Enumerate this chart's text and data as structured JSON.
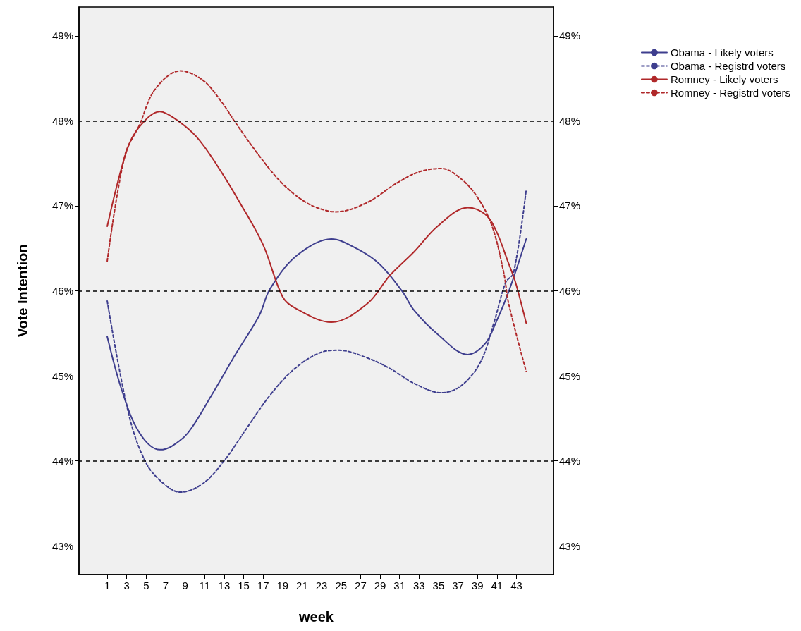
{
  "chart_data": {
    "type": "line",
    "xlabel": "week",
    "ylabel": "Vote Intention",
    "xlim": [
      -1.9,
      46.8
    ],
    "xticks": [
      1,
      3,
      5,
      7,
      9,
      11,
      13,
      15,
      17,
      19,
      21,
      23,
      25,
      27,
      29,
      31,
      33,
      35,
      37,
      39,
      41,
      43
    ],
    "ylim": [
      42.66,
      49.34
    ],
    "yticks": [
      {
        "value": 43,
        "label": "43%"
      },
      {
        "value": 44,
        "label": "44%"
      },
      {
        "value": 45,
        "label": "45%"
      },
      {
        "value": 46,
        "label": "46%"
      },
      {
        "value": 47,
        "label": "47%"
      },
      {
        "value": 48,
        "label": "48%"
      },
      {
        "value": 49,
        "label": "49%"
      }
    ],
    "y2lim": [
      42.66,
      49.34
    ],
    "y2ticks": [
      {
        "value": 43,
        "label": "43%"
      },
      {
        "value": 44,
        "label": "44%"
      },
      {
        "value": 45,
        "label": "45%"
      },
      {
        "value": 46,
        "label": "46%"
      },
      {
        "value": 47,
        "label": "47%"
      },
      {
        "value": 48,
        "label": "48%"
      },
      {
        "value": 49,
        "label": "49%"
      }
    ],
    "grid": false,
    "legend": "right",
    "ref_lines": [
      {
        "axis": "y",
        "value": 44,
        "color": "#000000",
        "line_style": "dashed"
      },
      {
        "axis": "y",
        "value": 46,
        "color": "#000000",
        "line_style": "dashed"
      },
      {
        "axis": "y",
        "value": 48,
        "color": "#000000",
        "line_style": "dashed"
      }
    ],
    "series": [
      {
        "name": "Obama - Likely voters",
        "color": "#3e3e8e",
        "line_style": "solid",
        "x": [
          1,
          2.5,
          4.3,
          6.4,
          7.6,
          9.3,
          11.7,
          14.1,
          16.6,
          17.7,
          20.4,
          24,
          26.4,
          28.9,
          31.3,
          32.5,
          34.9,
          38,
          39.8,
          40.9,
          42.2,
          44
        ],
        "values": [
          45.46,
          44.83,
          44.33,
          44.13,
          44.17,
          44.33,
          44.77,
          45.24,
          45.71,
          46.02,
          46.41,
          46.61,
          46.51,
          46.32,
          45.99,
          45.77,
          45.49,
          45.25,
          45.38,
          45.63,
          45.99,
          46.61
        ]
      },
      {
        "name": "Obama - Registrd voters",
        "color": "#3e3e8e",
        "line_style": "dashed",
        "x": [
          1,
          3.2,
          5,
          6.9,
          8.5,
          10.8,
          13,
          15.3,
          17.7,
          20.2,
          22.8,
          24.8,
          27.7,
          30.1,
          32.5,
          35.3,
          37.3,
          39.3,
          40.7,
          41.9,
          42.7,
          44
        ],
        "values": [
          45.88,
          44.55,
          43.97,
          43.72,
          43.63,
          43.73,
          44.0,
          44.38,
          44.77,
          45.08,
          45.27,
          45.3,
          45.21,
          45.08,
          44.91,
          44.8,
          44.88,
          45.16,
          45.63,
          46.1,
          46.21,
          47.19
        ]
      },
      {
        "name": "Romney - Likely voters",
        "color": "#b0282a",
        "line_style": "solid",
        "x": [
          1,
          3,
          4.3,
          6.4,
          7.9,
          10.1,
          12.2,
          14.6,
          17,
          19,
          20.4,
          24,
          27.7,
          30,
          32.5,
          34.9,
          38,
          39.8,
          40.9,
          42.2,
          42.9,
          44
        ],
        "values": [
          46.76,
          47.65,
          47.93,
          48.11,
          48.03,
          47.82,
          47.49,
          47.04,
          46.54,
          45.93,
          45.79,
          45.63,
          45.85,
          46.18,
          46.46,
          46.76,
          46.98,
          46.9,
          46.71,
          46.32,
          46.1,
          45.62
        ]
      },
      {
        "name": "Romney - Registrd voters",
        "color": "#b0282a",
        "line_style": "dashed",
        "x": [
          1,
          2.8,
          4.3,
          5.9,
          8.5,
          10.8,
          12.7,
          14.1,
          16.6,
          19,
          21.4,
          23.3,
          24.5,
          27.7,
          30.6,
          33,
          35.3,
          37.3,
          39,
          40.5,
          41.7,
          42.2,
          44
        ],
        "values": [
          46.35,
          47.59,
          47.95,
          48.37,
          48.59,
          48.48,
          48.23,
          47.99,
          47.59,
          47.26,
          47.04,
          46.95,
          46.93,
          47.04,
          47.26,
          47.4,
          47.44,
          47.32,
          47.1,
          46.76,
          46.21,
          45.85,
          45.05
        ]
      }
    ]
  }
}
